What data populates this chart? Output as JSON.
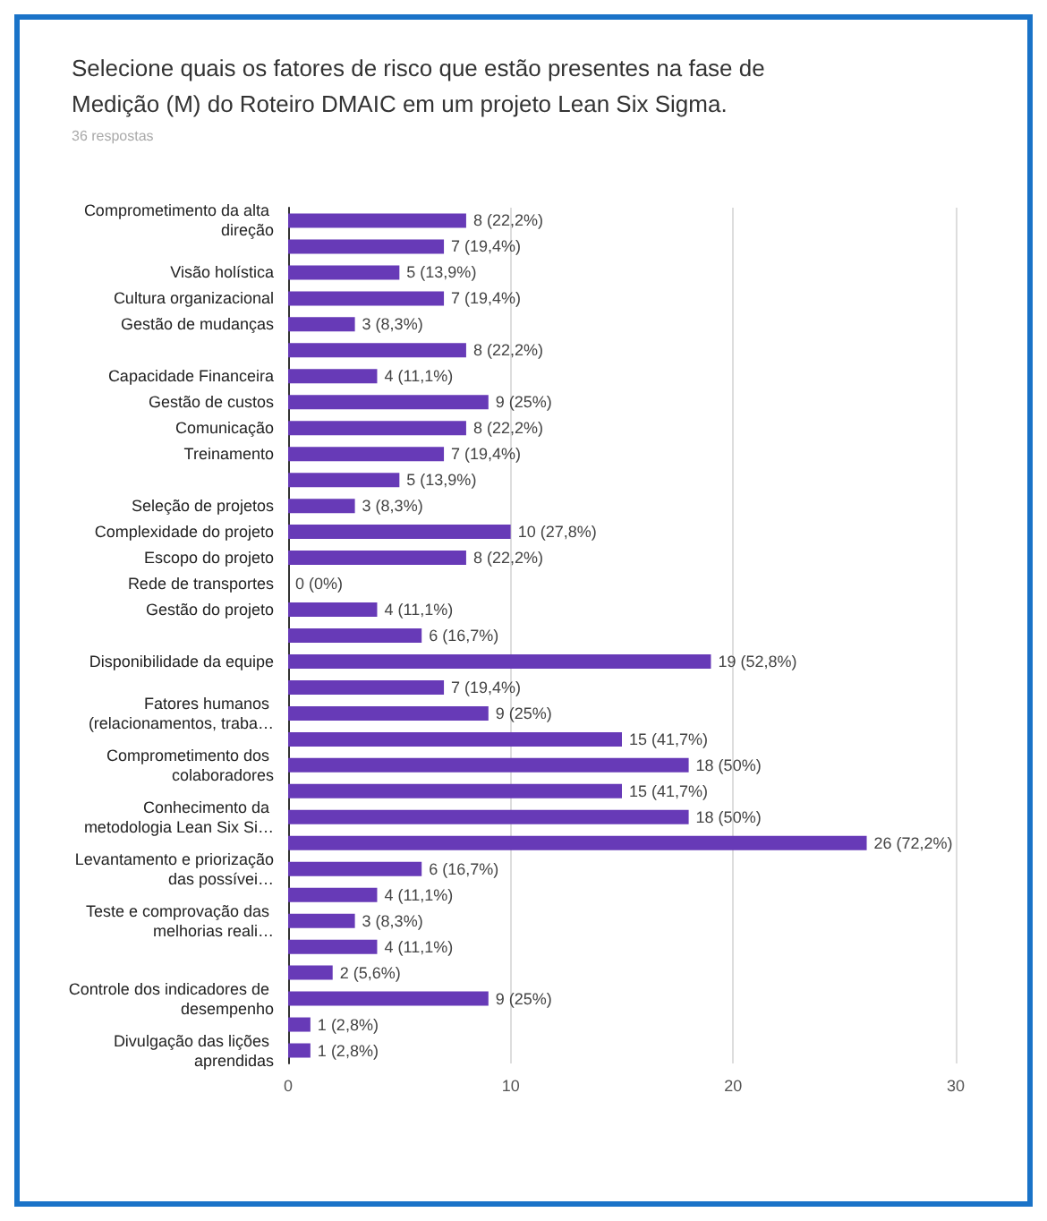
{
  "chart_data": {
    "type": "bar",
    "orientation": "horizontal",
    "title": "Selecione quais os fatores de risco que estão presentes na fase de Medição (M) do Roteiro DMAIC em um projeto Lean Six Sigma.",
    "subtitle": "36 respostas",
    "categories": [
      "Comprometimento da alta direção",
      null,
      "Visão holística",
      "Cultura organizacional",
      "Gestão de mudanças",
      null,
      "Capacidade Financeira",
      "Gestão de custos",
      "Comunicação",
      "Treinamento",
      null,
      "Seleção de projetos",
      "Complexidade do projeto",
      "Escopo do projeto",
      "Rede de transportes",
      "Gestão do projeto",
      null,
      "Disponibilidade da equipe",
      null,
      "Fatores humanos (relacionamentos, traba…",
      null,
      "Comprometimento dos colaboradores",
      null,
      "Conhecimento da metodologia Lean Six Si…",
      null,
      "Levantamento e priorização das possívei…",
      null,
      "Teste e comprovação das melhorias reali…",
      null,
      null,
      "Controle dos indicadores de desempenho",
      null,
      "Divulgação das lições aprendidas"
    ],
    "values": [
      8,
      7,
      5,
      7,
      3,
      8,
      4,
      9,
      8,
      7,
      5,
      3,
      10,
      8,
      0,
      4,
      6,
      19,
      7,
      9,
      15,
      18,
      15,
      18,
      26,
      6,
      4,
      3,
      4,
      2,
      9,
      1,
      1
    ],
    "value_labels": [
      "8 (22,2%)",
      "7 (19,4%)",
      "5 (13,9%)",
      "7 (19,4%)",
      "3 (8,3%)",
      "8 (22,2%)",
      "4 (11,1%)",
      "9 (25%)",
      "8 (22,2%)",
      "7 (19,4%)",
      "5 (13,9%)",
      "3 (8,3%)",
      "10 (27,8%)",
      "8 (22,2%)",
      "0 (0%)",
      "4 (11,1%)",
      "6 (16,7%)",
      "19 (52,8%)",
      "7 (19,4%)",
      "9 (25%)",
      "15 (41,7%)",
      "18 (50%)",
      "15 (41,7%)",
      "18 (50%)",
      "26 (72,2%)",
      "6 (16,7%)",
      "4 (11,1%)",
      "3 (8,3%)",
      "4 (11,1%)",
      "2 (5,6%)",
      "9 (25%)",
      "1 (2,8%)",
      "1 (2,8%)"
    ],
    "color": "#673ab7",
    "xlim": [
      0,
      30
    ],
    "xticks": [
      0,
      10,
      20,
      30
    ],
    "grid": "x"
  }
}
